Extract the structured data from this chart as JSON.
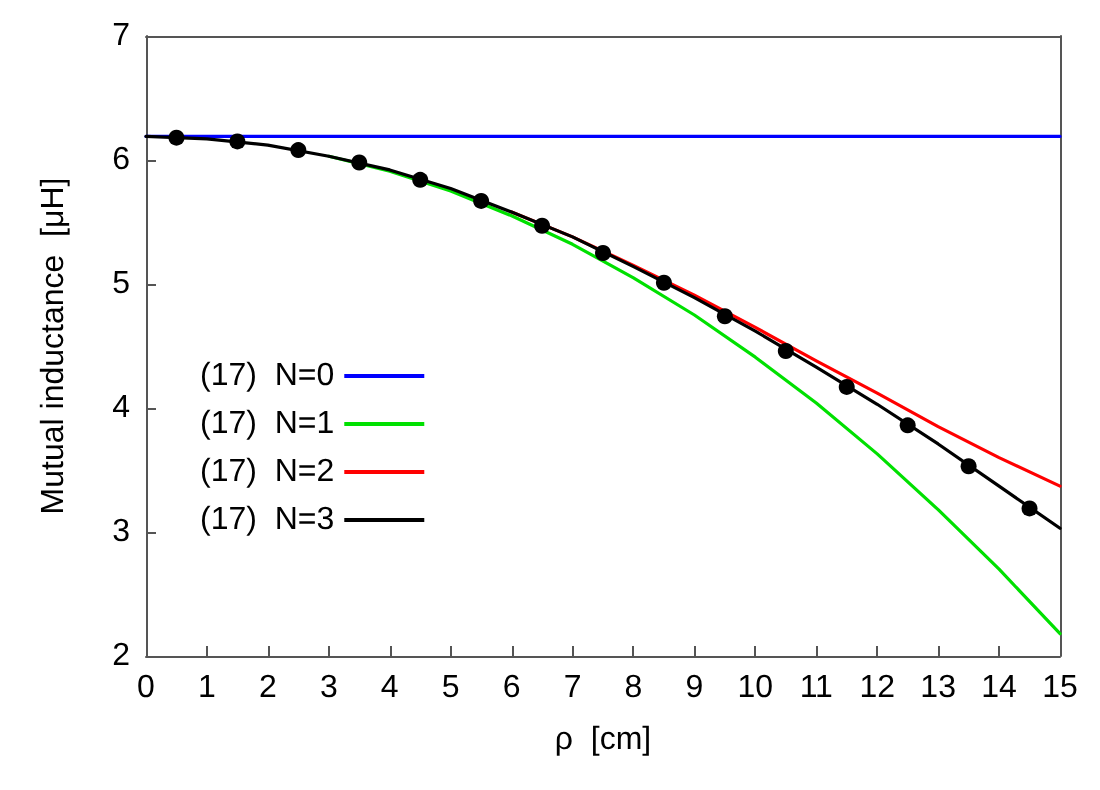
{
  "chart_data": {
    "type": "line",
    "xlabel": "ρ  [cm]",
    "ylabel": "Mutual inductance  [μH]",
    "xlim": [
      0,
      15
    ],
    "xticks": [
      0,
      1,
      2,
      3,
      4,
      5,
      6,
      7,
      8,
      9,
      10,
      11,
      12,
      13,
      14,
      15
    ],
    "ylim": [
      2,
      7
    ],
    "yticks": [
      2,
      3,
      4,
      5,
      6,
      7
    ],
    "grid": false,
    "legend": "left",
    "marker": "none",
    "line_style": "solid",
    "x": [
      0,
      1,
      2,
      3,
      4,
      5,
      6,
      7,
      8,
      9,
      10,
      11,
      12,
      13,
      14,
      15
    ],
    "series": [
      {
        "name": "(17)  N=0",
        "color": "#0000ff",
        "values": [
          6.19,
          6.19,
          6.19,
          6.19,
          6.19,
          6.19,
          6.19,
          6.19,
          6.19,
          6.19,
          6.19,
          6.19,
          6.19,
          6.19,
          6.19,
          6.19
        ]
      },
      {
        "name": "(17)  N=1",
        "color": "#00e000",
        "values": [
          null,
          null,
          null,
          6.03,
          5.91,
          5.75,
          5.55,
          5.32,
          5.05,
          4.75,
          4.41,
          4.04,
          3.63,
          3.18,
          2.7,
          2.18
        ]
      },
      {
        "name": "(17)  N=2",
        "color": "#ff0000",
        "values": [
          null,
          null,
          null,
          null,
          null,
          null,
          5.58,
          5.38,
          5.15,
          4.91,
          4.65,
          4.38,
          4.12,
          3.85,
          3.6,
          3.37
        ]
      },
      {
        "name": "(17)  N=3",
        "color": "#000000",
        "values": [
          6.19,
          6.17,
          6.12,
          6.03,
          5.92,
          5.77,
          5.58,
          5.38,
          5.14,
          4.89,
          4.62,
          4.33,
          4.03,
          3.71,
          3.37,
          3.03
        ]
      },
      {
        "type": "scatter",
        "color": "#000000",
        "marker": "circle",
        "x": [
          0.5,
          1.5,
          2.5,
          3.5,
          4.5,
          5.5,
          6.5,
          7.5,
          8.5,
          9.5,
          10.5,
          11.5,
          12.5,
          13.5,
          14.5
        ],
        "values": [
          6.18,
          6.15,
          6.08,
          5.98,
          5.84,
          5.67,
          5.47,
          5.25,
          5.01,
          4.74,
          4.46,
          4.17,
          3.86,
          3.53,
          3.19
        ]
      }
    ]
  }
}
